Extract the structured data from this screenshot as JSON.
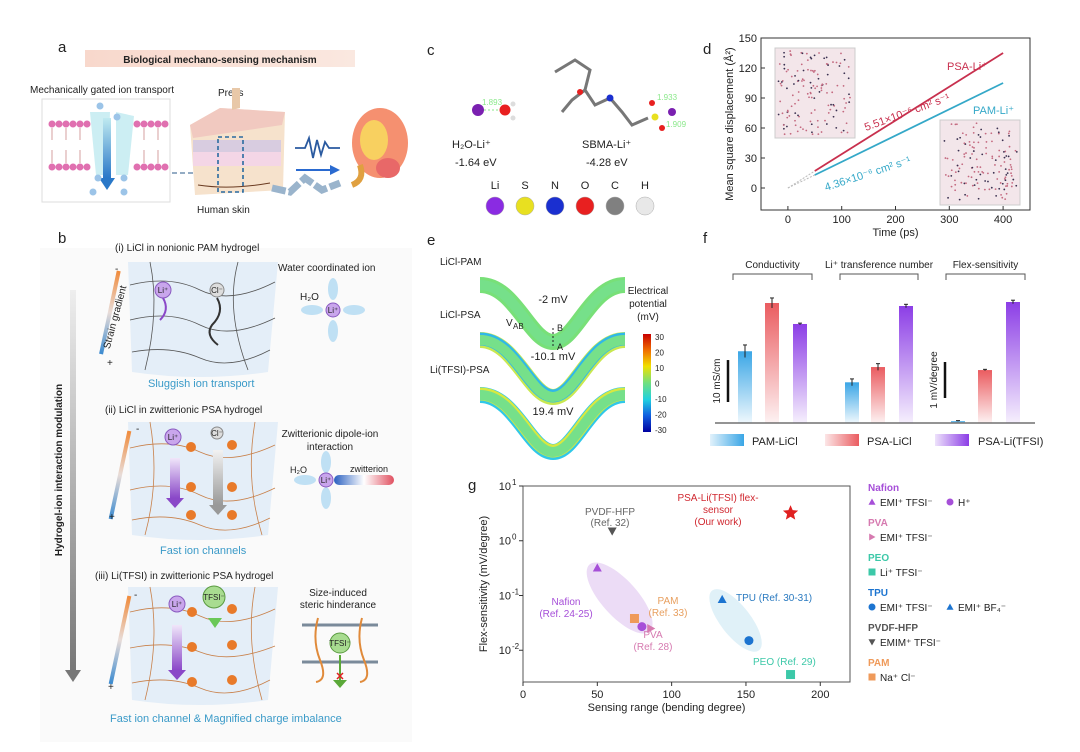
{
  "panel_a": {
    "label": "a",
    "title": "Biological mechano-sensing mechanism",
    "membrane_caption": "Mechanically gated ion transport",
    "press": "Press",
    "skin": "Human skin"
  },
  "panel_b": {
    "label": "b",
    "axis_label": "Hydrogel-ion interaction modulation",
    "strain_label": "Strain gradient",
    "minus": "-",
    "plus": "+",
    "ions": {
      "li": "Li⁺",
      "cl": "Cl⁻",
      "tfsi": "TFSI⁻",
      "h2o": "H₂O",
      "zwitterion": "zwitterion",
      "neg": "-",
      "pos": "+"
    },
    "sections": [
      {
        "title": "(i)  LiCl in nonionic PAM hydrogel",
        "side_title": "Water coordinated ion",
        "caption": "Sluggish ion transport"
      },
      {
        "title": "(ii)  LiCl in zwitterionic PSA hydrogel",
        "side_title_1": "Zwitterionic dipole-ion",
        "side_title_2": "interaction",
        "caption": "Fast ion channels"
      },
      {
        "title": "(iii)  Li(TFSI) in zwitterionic PSA hydrogel",
        "side_title_1": "Size-induced",
        "side_title_2": "steric hinderance",
        "caption": "Fast ion channel & Magnified charge imbalance"
      }
    ]
  },
  "panel_c": {
    "label": "c",
    "bond_1": "1.893",
    "bond_2": "1.933",
    "bond_3": "1.909",
    "complex_1": {
      "name": "H₂O-Li⁺",
      "energy": "-1.64 eV"
    },
    "complex_2": {
      "name": "SBMA-Li⁺",
      "energy": "-4.28 eV"
    },
    "elements": [
      {
        "symbol": "Li",
        "color": "#8a2be2"
      },
      {
        "symbol": "S",
        "color": "#e8e020"
      },
      {
        "symbol": "N",
        "color": "#1a2fd0"
      },
      {
        "symbol": "O",
        "color": "#e82020"
      },
      {
        "symbol": "C",
        "color": "#808080"
      },
      {
        "symbol": "H",
        "color": "#e8e8e8"
      }
    ]
  },
  "panel_e": {
    "label": "e",
    "samples": [
      {
        "name": "LiCl-PAM",
        "value": "-2 mV"
      },
      {
        "name": "LiCl-PSA",
        "value": "-10.1 mV"
      },
      {
        "name": "Li(TFSI)-PSA",
        "value": "19.4 mV"
      }
    ],
    "vab": "V",
    "vab_sub": "AB",
    "point_a": "A",
    "point_b": "B",
    "colorbar_title_1": "Electrical",
    "colorbar_title_2": "potential",
    "colorbar_title_3": "(mV)",
    "colorbar_ticks": [
      "30",
      "20",
      "10",
      "0",
      "-10",
      "-20",
      "-30"
    ]
  },
  "chart_data": [
    {
      "id": "d",
      "label": "d",
      "type": "line",
      "xlabel": "Time (ps)",
      "ylabel": "Mean square displacement (Å²)",
      "xlim": [
        -50,
        450
      ],
      "ylim": [
        -22,
        150
      ],
      "xticks": [
        0,
        100,
        200,
        300,
        400
      ],
      "yticks": [
        0,
        30,
        60,
        90,
        120,
        150
      ],
      "series": [
        {
          "name": "PSA-Li⁺",
          "color": "#c8304e",
          "x": [
            0,
            50,
            400
          ],
          "y": [
            0,
            17,
            135
          ],
          "annotation": "5.51×10⁻⁶ cm² s⁻¹"
        },
        {
          "name": "PAM-Li⁺",
          "color": "#34a8c8",
          "x": [
            0,
            50,
            400
          ],
          "y": [
            0,
            13,
            105
          ],
          "annotation": "4.36×10⁻⁶ cm² s⁻¹"
        }
      ]
    },
    {
      "id": "f",
      "label": "f",
      "type": "bar",
      "groups": [
        "Conductivity",
        "Li⁺ transference number",
        "Flex-sensitivity"
      ],
      "series": [
        {
          "name": "PAM-LiCl",
          "color": "#3aa6e6",
          "values": [
            17.1,
            0.24,
            0.015
          ],
          "errors": [
            1.5,
            0.02,
            0.01
          ]
        },
        {
          "name": "PSA-LiCl",
          "color": "#ea5c60",
          "values": [
            28.6,
            0.33,
            1.47
          ],
          "errors": [
            1.2,
            0.02,
            0.02
          ]
        },
        {
          "name": "PSA-Li(TFSI)",
          "color": "#8c3ee6",
          "values": [
            23.6,
            0.69,
            3.36
          ],
          "errors": [
            0.2,
            0.01,
            0.05
          ]
        }
      ],
      "group_scale_max": [
        28.6,
        0.69,
        3.36
      ],
      "scale_bars": [
        {
          "group": "Conductivity",
          "label": "10 mS/cm",
          "value": 10
        },
        {
          "group": "Flex-sensitivity",
          "label": "1 mV/degree",
          "value": 1
        }
      ]
    },
    {
      "id": "g",
      "label": "g",
      "type": "scatter",
      "xlabel": "Sensing range (bending degree)",
      "ylabel": "Flex-sensitivity (mV/degree)",
      "xlim": [
        0,
        220
      ],
      "ylim_log10": [
        -2.58,
        1
      ],
      "xticks": [
        0,
        50,
        100,
        150,
        200
      ],
      "yticks": [
        {
          "base": "10",
          "exp": "1"
        },
        {
          "base": "10",
          "exp": "0"
        },
        {
          "base": "10",
          "exp": "-1"
        },
        {
          "base": "10",
          "exp": "-2"
        }
      ],
      "points": [
        {
          "material": "Nafion",
          "electrolyte": "EMI⁺ TFSI⁻",
          "marker": "triangle-up",
          "color": "#a64fd8",
          "x": 50,
          "y": 0.32
        },
        {
          "material": "Nafion",
          "electrolyte": "H⁺",
          "marker": "circle",
          "color": "#a64fd8",
          "x": 80,
          "y": 0.027
        },
        {
          "material": "PVA",
          "electrolyte": "EMI⁺ TFSI⁻",
          "marker": "triangle-right",
          "color": "#d67ab0",
          "x": 86,
          "y": 0.025
        },
        {
          "material": "PAM",
          "electrolyte": "Na⁺ Cl⁻",
          "marker": "square",
          "color": "#ef9a5a",
          "x": 75,
          "y": 0.038
        },
        {
          "material": "PVDF-HFP",
          "electrolyte": "EMIM⁺ TFSI⁻",
          "marker": "triangle-down",
          "color": "#555555",
          "x": 60,
          "y": 1.5
        },
        {
          "material": "TPU",
          "electrolyte": "EMI⁺ BF₄⁻",
          "marker": "triangle-up",
          "color": "#1c74d0",
          "x": 134,
          "y": 0.085
        },
        {
          "material": "TPU",
          "electrolyte": "EMI⁺ TFSI⁻",
          "marker": "circle",
          "color": "#1c74d0",
          "x": 152,
          "y": 0.015
        },
        {
          "material": "PEO",
          "electrolyte": "Li⁺ TFSI⁻",
          "marker": "square",
          "color": "#3cc8a8",
          "x": 180,
          "y": 0.0036
        },
        {
          "material": "PSA-Li(TFSI)",
          "electrolyte": "",
          "marker": "star",
          "color": "#e02020",
          "x": 180,
          "y": 3.2
        }
      ],
      "annotations": {
        "pvdf": [
          "PVDF-HFP",
          "(Ref. 32)"
        ],
        "ours": [
          "PSA-Li(TFSI) flex-",
          "sensor",
          "(Our work)"
        ],
        "nafion": [
          "Nafion",
          "(Ref. 24-25)"
        ],
        "pam": [
          "PAM",
          "(Ref. 33)"
        ],
        "pva": [
          "PVA",
          "(Ref. 28)"
        ],
        "tpu": "TPU (Ref. 30-31)",
        "peo": "PEO (Ref. 29)"
      },
      "legend": [
        {
          "title": "Nafion",
          "color": "#a64fd8",
          "entries": [
            {
              "marker": "triangle-up",
              "text": "EMI⁺ TFSI⁻"
            },
            {
              "marker": "circle",
              "text": "H⁺"
            }
          ]
        },
        {
          "title": "PVA",
          "color": "#d67ab0",
          "entries": [
            {
              "marker": "triangle-right",
              "text": "EMI⁺ TFSI⁻"
            }
          ]
        },
        {
          "title": "PEO",
          "color": "#3cc8a8",
          "entries": [
            {
              "marker": "square",
              "text": "Li⁺ TFSI⁻"
            }
          ]
        },
        {
          "title": "TPU",
          "color": "#1c74d0",
          "entries": [
            {
              "marker": "circle",
              "text": "EMI⁺ TFSI⁻"
            },
            {
              "marker": "triangle-up",
              "text": "EMI⁺ BF₄⁻"
            }
          ]
        },
        {
          "title": "PVDF-HFP",
          "color": "#555555",
          "entries": [
            {
              "marker": "triangle-down",
              "text": "EMIM⁺ TFSI⁻"
            }
          ]
        },
        {
          "title": "PAM",
          "color": "#ef9a5a",
          "entries": [
            {
              "marker": "square",
              "text": "Na⁺ Cl⁻"
            }
          ]
        }
      ]
    }
  ]
}
